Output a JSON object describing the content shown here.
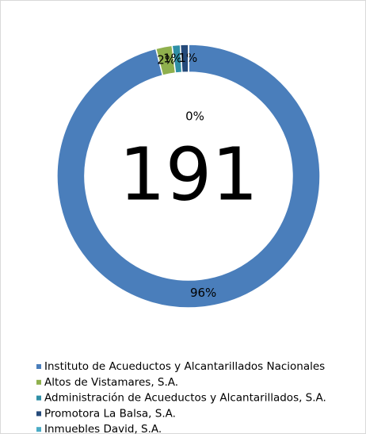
{
  "chart_data": {
    "type": "donut",
    "center_label": 191,
    "categories": [
      "Instituto de Acueductos y Alcantarillados Nacionales",
      "Altos de Vistamares, S.A.",
      "Administración de Acueductos y Alcantarillados, S.A.",
      "Promotora La Balsa, S.A.",
      "Inmuebles David, S.A."
    ],
    "values": [
      96,
      2,
      1,
      1,
      0
    ],
    "value_labels": [
      "96%",
      "2%",
      "1%",
      "1%",
      "0%"
    ],
    "colors": [
      "#4a7ebb",
      "#8fb04d",
      "#2f8fa6",
      "#254a7a",
      "#4bacc6"
    ],
    "legend": "bottom"
  }
}
